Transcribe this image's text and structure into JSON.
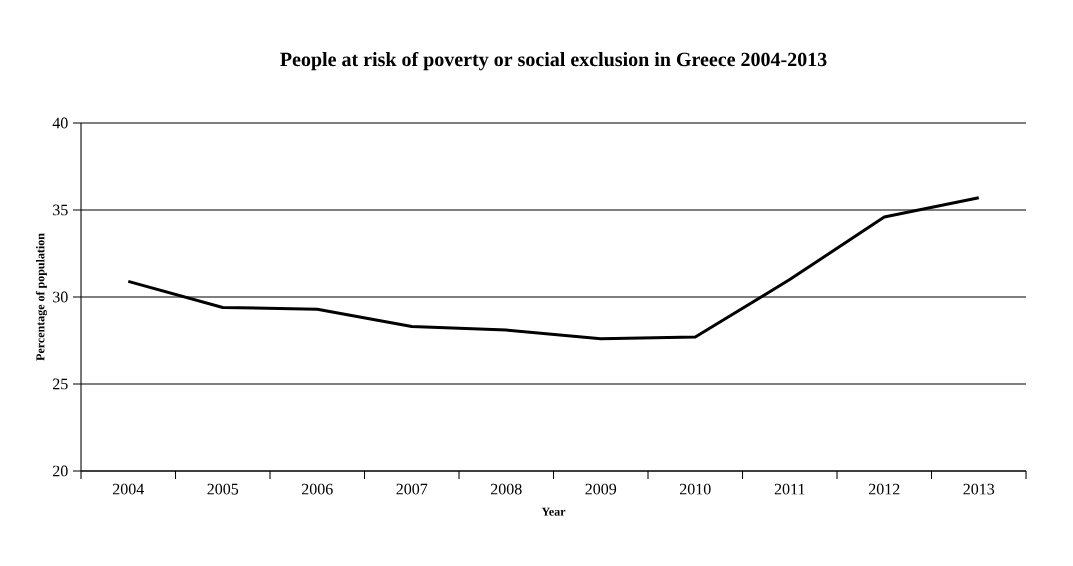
{
  "chart_data": {
    "type": "line",
    "title": "People at risk of poverty or social exclusion in Greece 2004-2013",
    "xlabel": "Year",
    "ylabel": "Percentage of population",
    "categories": [
      "2004",
      "2005",
      "2006",
      "2007",
      "2008",
      "2009",
      "2010",
      "2011",
      "2012",
      "2013"
    ],
    "series": [
      {
        "color": "#000000",
        "values": [
          30.9,
          29.4,
          29.3,
          28.3,
          28.1,
          27.6,
          27.7,
          31.0,
          34.6,
          35.7
        ]
      }
    ],
    "ylim": [
      20,
      40
    ],
    "yticks": [
      20,
      25,
      30,
      35,
      40
    ],
    "grid": "y",
    "marker": "none",
    "line_style": "solid"
  }
}
